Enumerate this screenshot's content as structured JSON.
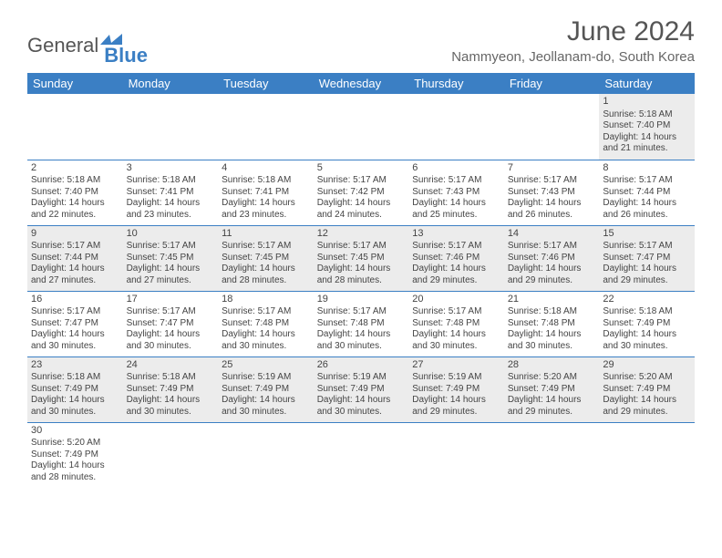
{
  "branding": {
    "logo_general": "General",
    "logo_blue": "Blue",
    "logo_icon_color": "#3b7fc4"
  },
  "header": {
    "title": "June 2024",
    "location": "Nammyeon, Jeollanam-do, South Korea"
  },
  "style": {
    "header_bg": "#3b7fc4",
    "header_text": "#ffffff",
    "row_alt_bg": "#ececec",
    "divider_color": "#3b7fc4",
    "body_text": "#444444",
    "title_color": "#555555"
  },
  "calendar": {
    "weekdays": [
      "Sunday",
      "Monday",
      "Tuesday",
      "Wednesday",
      "Thursday",
      "Friday",
      "Saturday"
    ],
    "days": {
      "1": {
        "sunrise": "5:18 AM",
        "sunset": "7:40 PM",
        "daylight": "14 hours and 21 minutes."
      },
      "2": {
        "sunrise": "5:18 AM",
        "sunset": "7:40 PM",
        "daylight": "14 hours and 22 minutes."
      },
      "3": {
        "sunrise": "5:18 AM",
        "sunset": "7:41 PM",
        "daylight": "14 hours and 23 minutes."
      },
      "4": {
        "sunrise": "5:18 AM",
        "sunset": "7:41 PM",
        "daylight": "14 hours and 23 minutes."
      },
      "5": {
        "sunrise": "5:17 AM",
        "sunset": "7:42 PM",
        "daylight": "14 hours and 24 minutes."
      },
      "6": {
        "sunrise": "5:17 AM",
        "sunset": "7:43 PM",
        "daylight": "14 hours and 25 minutes."
      },
      "7": {
        "sunrise": "5:17 AM",
        "sunset": "7:43 PM",
        "daylight": "14 hours and 26 minutes."
      },
      "8": {
        "sunrise": "5:17 AM",
        "sunset": "7:44 PM",
        "daylight": "14 hours and 26 minutes."
      },
      "9": {
        "sunrise": "5:17 AM",
        "sunset": "7:44 PM",
        "daylight": "14 hours and 27 minutes."
      },
      "10": {
        "sunrise": "5:17 AM",
        "sunset": "7:45 PM",
        "daylight": "14 hours and 27 minutes."
      },
      "11": {
        "sunrise": "5:17 AM",
        "sunset": "7:45 PM",
        "daylight": "14 hours and 28 minutes."
      },
      "12": {
        "sunrise": "5:17 AM",
        "sunset": "7:45 PM",
        "daylight": "14 hours and 28 minutes."
      },
      "13": {
        "sunrise": "5:17 AM",
        "sunset": "7:46 PM",
        "daylight": "14 hours and 29 minutes."
      },
      "14": {
        "sunrise": "5:17 AM",
        "sunset": "7:46 PM",
        "daylight": "14 hours and 29 minutes."
      },
      "15": {
        "sunrise": "5:17 AM",
        "sunset": "7:47 PM",
        "daylight": "14 hours and 29 minutes."
      },
      "16": {
        "sunrise": "5:17 AM",
        "sunset": "7:47 PM",
        "daylight": "14 hours and 30 minutes."
      },
      "17": {
        "sunrise": "5:17 AM",
        "sunset": "7:47 PM",
        "daylight": "14 hours and 30 minutes."
      },
      "18": {
        "sunrise": "5:17 AM",
        "sunset": "7:48 PM",
        "daylight": "14 hours and 30 minutes."
      },
      "19": {
        "sunrise": "5:17 AM",
        "sunset": "7:48 PM",
        "daylight": "14 hours and 30 minutes."
      },
      "20": {
        "sunrise": "5:17 AM",
        "sunset": "7:48 PM",
        "daylight": "14 hours and 30 minutes."
      },
      "21": {
        "sunrise": "5:18 AM",
        "sunset": "7:48 PM",
        "daylight": "14 hours and 30 minutes."
      },
      "22": {
        "sunrise": "5:18 AM",
        "sunset": "7:49 PM",
        "daylight": "14 hours and 30 minutes."
      },
      "23": {
        "sunrise": "5:18 AM",
        "sunset": "7:49 PM",
        "daylight": "14 hours and 30 minutes."
      },
      "24": {
        "sunrise": "5:18 AM",
        "sunset": "7:49 PM",
        "daylight": "14 hours and 30 minutes."
      },
      "25": {
        "sunrise": "5:19 AM",
        "sunset": "7:49 PM",
        "daylight": "14 hours and 30 minutes."
      },
      "26": {
        "sunrise": "5:19 AM",
        "sunset": "7:49 PM",
        "daylight": "14 hours and 30 minutes."
      },
      "27": {
        "sunrise": "5:19 AM",
        "sunset": "7:49 PM",
        "daylight": "14 hours and 29 minutes."
      },
      "28": {
        "sunrise": "5:20 AM",
        "sunset": "7:49 PM",
        "daylight": "14 hours and 29 minutes."
      },
      "29": {
        "sunrise": "5:20 AM",
        "sunset": "7:49 PM",
        "daylight": "14 hours and 29 minutes."
      },
      "30": {
        "sunrise": "5:20 AM",
        "sunset": "7:49 PM",
        "daylight": "14 hours and 28 minutes."
      }
    },
    "labels": {
      "sunrise_prefix": "Sunrise: ",
      "sunset_prefix": "Sunset: ",
      "daylight_prefix": "Daylight: "
    },
    "layout": {
      "first_weekday_index": 6,
      "num_days": 30
    }
  }
}
